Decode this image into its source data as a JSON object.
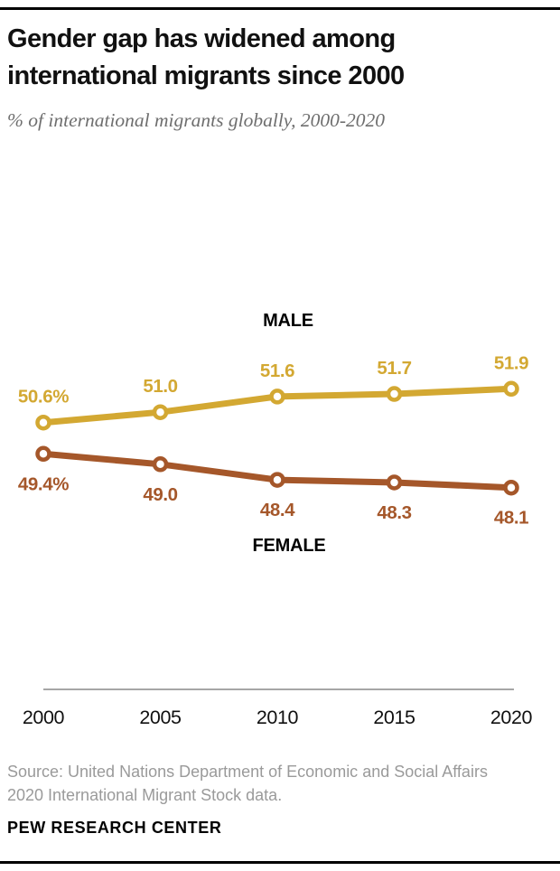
{
  "header": {
    "title": "Gender gap has widened among international migrants since 2000",
    "subtitle": "% of international migrants globally, 2000-2020"
  },
  "chart_data": {
    "type": "line",
    "title": "Gender gap has widened among international migrants since 2000",
    "subtitle": "% of international migrants globally, 2000-2020",
    "categories": [
      "2000",
      "2005",
      "2010",
      "2015",
      "2020"
    ],
    "series": [
      {
        "name": "MALE",
        "values": [
          50.6,
          51.0,
          51.6,
          51.7,
          51.9
        ],
        "labels": [
          "50.6%",
          "51.0",
          "51.6",
          "51.7",
          "51.9"
        ],
        "color": "#d3a832"
      },
      {
        "name": "FEMALE",
        "values": [
          49.4,
          49.0,
          48.4,
          48.3,
          48.1
        ],
        "labels": [
          "49.4%",
          "49.0",
          "48.4",
          "48.3",
          "48.1"
        ],
        "color": "#a5572a"
      }
    ],
    "xlabel": "",
    "ylabel": "",
    "ylim": [
      47,
      53
    ],
    "grid": false,
    "legend_position": "inline (MALE above gold line, FEMALE below brown line)",
    "marker_style": "open-circle",
    "axis_color": "#a6a6a6"
  },
  "footer": {
    "source": "Source: United Nations Department of Economic and Social Affairs 2020 International Migrant Stock data.",
    "brand": "PEW RESEARCH CENTER"
  }
}
